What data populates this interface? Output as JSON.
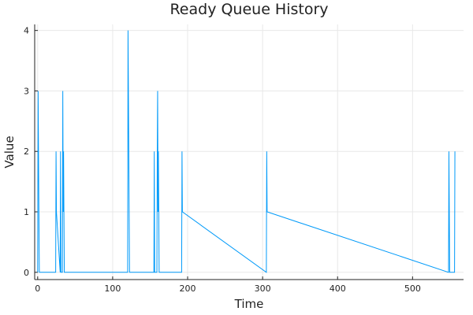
{
  "chart_data": {
    "type": "line",
    "title": "Ready Queue History",
    "xlabel": "Time",
    "ylabel": "Value",
    "xlim": [
      -4,
      568
    ],
    "ylim": [
      -0.12,
      4.1
    ],
    "xticks": [
      0,
      100,
      200,
      300,
      400,
      500
    ],
    "yticks": [
      0,
      1,
      2,
      3,
      4
    ],
    "grid": true,
    "legend": "none",
    "line_color": "#009af9",
    "series": [
      {
        "x": [
          0,
          0.6,
          1.1,
          1.6,
          2.2,
          24,
          24.5,
          25,
          30,
          30.5,
          31,
          33,
          33.5,
          34,
          34.5,
          35,
          35.5,
          36,
          120,
          120.5,
          121,
          121.5,
          122,
          122.5,
          123,
          155,
          155.5,
          156,
          159,
          159.5,
          160,
          160.5,
          161,
          161.5,
          162,
          162.5,
          192,
          192.5,
          193,
          305,
          305.5,
          306,
          548,
          548.5,
          549,
          549.5,
          556,
          556.5
        ],
        "y": [
          0,
          3,
          2,
          1,
          0,
          0,
          2,
          1,
          0,
          2,
          0,
          0,
          3,
          1,
          2,
          1,
          0,
          0,
          0,
          4,
          3,
          2,
          1,
          0,
          0,
          0,
          2,
          0,
          0,
          2,
          3,
          1,
          2,
          1,
          0,
          0,
          0,
          2,
          1,
          0,
          2,
          1,
          0,
          2,
          1,
          0,
          0,
          2
        ]
      }
    ]
  }
}
